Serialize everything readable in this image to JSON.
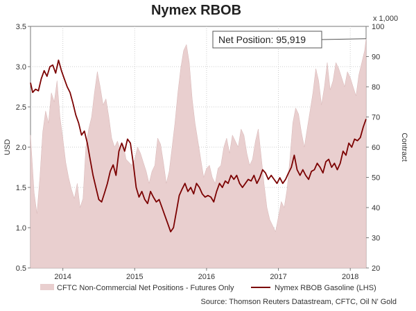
{
  "chart_data": {
    "type": "area",
    "title": "Nymex RBOB",
    "ylabel_left": "USD",
    "ylabel_right": "Contract",
    "right_axis_multiplier": "x 1,000",
    "ylim_left": [
      0.5,
      3.5
    ],
    "ylim_right": [
      20,
      100
    ],
    "xlim": [
      2013.55,
      2018.22
    ],
    "left_ticks": [
      "0.5",
      "1.0",
      "1.5",
      "2.0",
      "2.5",
      "3.0",
      "3.5"
    ],
    "right_ticks": [
      "20",
      "30",
      "40",
      "50",
      "60",
      "70",
      "80",
      "90",
      "100"
    ],
    "x_ticks": [
      {
        "value": 2014,
        "label": "2014"
      },
      {
        "value": 2015,
        "label": "2015"
      },
      {
        "value": 2016,
        "label": "2016"
      },
      {
        "value": 2017,
        "label": "2017"
      },
      {
        "value": 2018,
        "label": "2018"
      }
    ],
    "grid": true,
    "legend_placement": "bottom",
    "annotation": "Net Position: 95,919",
    "annotation_value": 95.919,
    "series": [
      {
        "name": "CFTC Non-Commercial Net Positions - Futures Only",
        "axis": "right",
        "kind": "area",
        "color": "#e9cfcf",
        "points": [
          [
            2013.55,
            64
          ],
          [
            2013.6,
            45
          ],
          [
            2013.64,
            38
          ],
          [
            2013.68,
            50
          ],
          [
            2013.72,
            65
          ],
          [
            2013.76,
            72
          ],
          [
            2013.8,
            68
          ],
          [
            2013.84,
            78
          ],
          [
            2013.88,
            75
          ],
          [
            2013.92,
            82
          ],
          [
            2013.96,
            70
          ],
          [
            2014.0,
            63
          ],
          [
            2014.04,
            55
          ],
          [
            2014.08,
            50
          ],
          [
            2014.12,
            46
          ],
          [
            2014.16,
            43
          ],
          [
            2014.2,
            48
          ],
          [
            2014.24,
            40
          ],
          [
            2014.28,
            43
          ],
          [
            2014.32,
            60
          ],
          [
            2014.36,
            66
          ],
          [
            2014.4,
            70
          ],
          [
            2014.44,
            78
          ],
          [
            2014.48,
            85
          ],
          [
            2014.52,
            80
          ],
          [
            2014.56,
            74
          ],
          [
            2014.6,
            76
          ],
          [
            2014.64,
            70
          ],
          [
            2014.68,
            63
          ],
          [
            2014.72,
            60
          ],
          [
            2014.76,
            62
          ],
          [
            2014.8,
            59
          ],
          [
            2014.84,
            61
          ],
          [
            2014.88,
            56
          ],
          [
            2014.92,
            55
          ],
          [
            2014.96,
            54
          ],
          [
            2015.0,
            56
          ],
          [
            2015.04,
            60
          ],
          [
            2015.08,
            58
          ],
          [
            2015.12,
            55
          ],
          [
            2015.16,
            52
          ],
          [
            2015.2,
            48
          ],
          [
            2015.24,
            52
          ],
          [
            2015.28,
            54
          ],
          [
            2015.32,
            63
          ],
          [
            2015.36,
            61
          ],
          [
            2015.4,
            55
          ],
          [
            2015.44,
            48
          ],
          [
            2015.48,
            52
          ],
          [
            2015.52,
            60
          ],
          [
            2015.56,
            68
          ],
          [
            2015.6,
            78
          ],
          [
            2015.64,
            86
          ],
          [
            2015.68,
            92
          ],
          [
            2015.72,
            94
          ],
          [
            2015.76,
            88
          ],
          [
            2015.8,
            76
          ],
          [
            2015.84,
            68
          ],
          [
            2015.88,
            62
          ],
          [
            2015.92,
            56
          ],
          [
            2015.96,
            50
          ],
          [
            2016.0,
            53
          ],
          [
            2016.04,
            54
          ],
          [
            2016.08,
            50
          ],
          [
            2016.12,
            48
          ],
          [
            2016.16,
            53
          ],
          [
            2016.2,
            54
          ],
          [
            2016.24,
            60
          ],
          [
            2016.28,
            63
          ],
          [
            2016.32,
            58
          ],
          [
            2016.36,
            64
          ],
          [
            2016.4,
            62
          ],
          [
            2016.44,
            60
          ],
          [
            2016.48,
            66
          ],
          [
            2016.52,
            64
          ],
          [
            2016.56,
            58
          ],
          [
            2016.6,
            54
          ],
          [
            2016.64,
            56
          ],
          [
            2016.68,
            62
          ],
          [
            2016.72,
            66
          ],
          [
            2016.76,
            57
          ],
          [
            2016.8,
            48
          ],
          [
            2016.84,
            40
          ],
          [
            2016.88,
            36
          ],
          [
            2016.92,
            34
          ],
          [
            2016.96,
            32
          ],
          [
            2017.0,
            37
          ],
          [
            2017.04,
            42
          ],
          [
            2017.08,
            40
          ],
          [
            2017.12,
            46
          ],
          [
            2017.16,
            56
          ],
          [
            2017.2,
            68
          ],
          [
            2017.24,
            73
          ],
          [
            2017.28,
            71
          ],
          [
            2017.32,
            65
          ],
          [
            2017.36,
            60
          ],
          [
            2017.4,
            66
          ],
          [
            2017.44,
            72
          ],
          [
            2017.48,
            78
          ],
          [
            2017.52,
            86
          ],
          [
            2017.56,
            82
          ],
          [
            2017.6,
            74
          ],
          [
            2017.64,
            80
          ],
          [
            2017.68,
            88
          ],
          [
            2017.72,
            79
          ],
          [
            2017.76,
            82
          ],
          [
            2017.8,
            88
          ],
          [
            2017.84,
            86
          ],
          [
            2017.88,
            83
          ],
          [
            2017.92,
            80
          ],
          [
            2017.96,
            85
          ],
          [
            2018.0,
            83
          ],
          [
            2018.04,
            80
          ],
          [
            2018.08,
            77
          ],
          [
            2018.12,
            84
          ],
          [
            2018.16,
            88
          ],
          [
            2018.2,
            92
          ],
          [
            2018.22,
            95.919
          ]
        ]
      },
      {
        "name": "Nymex RBOB Gasoline (LHS)",
        "axis": "left",
        "kind": "line",
        "color": "#7b0000",
        "points": [
          [
            2013.55,
            2.8
          ],
          [
            2013.58,
            2.68
          ],
          [
            2013.62,
            2.72
          ],
          [
            2013.66,
            2.7
          ],
          [
            2013.7,
            2.85
          ],
          [
            2013.74,
            2.95
          ],
          [
            2013.78,
            2.88
          ],
          [
            2013.82,
            3.0
          ],
          [
            2013.86,
            3.02
          ],
          [
            2013.9,
            2.92
          ],
          [
            2013.94,
            3.08
          ],
          [
            2013.98,
            2.95
          ],
          [
            2014.02,
            2.85
          ],
          [
            2014.06,
            2.75
          ],
          [
            2014.1,
            2.68
          ],
          [
            2014.14,
            2.55
          ],
          [
            2014.18,
            2.4
          ],
          [
            2014.22,
            2.3
          ],
          [
            2014.26,
            2.15
          ],
          [
            2014.3,
            2.2
          ],
          [
            2014.34,
            2.05
          ],
          [
            2014.38,
            1.85
          ],
          [
            2014.42,
            1.65
          ],
          [
            2014.46,
            1.5
          ],
          [
            2014.5,
            1.35
          ],
          [
            2014.54,
            1.32
          ],
          [
            2014.58,
            1.43
          ],
          [
            2014.62,
            1.55
          ],
          [
            2014.66,
            1.7
          ],
          [
            2014.7,
            1.78
          ],
          [
            2014.74,
            1.65
          ],
          [
            2014.78,
            1.95
          ],
          [
            2014.82,
            2.05
          ],
          [
            2014.86,
            1.95
          ],
          [
            2014.9,
            2.1
          ],
          [
            2014.94,
            2.05
          ],
          [
            2014.98,
            1.8
          ],
          [
            2015.02,
            1.5
          ],
          [
            2015.06,
            1.38
          ],
          [
            2015.1,
            1.45
          ],
          [
            2015.14,
            1.35
          ],
          [
            2015.18,
            1.3
          ],
          [
            2015.22,
            1.45
          ],
          [
            2015.26,
            1.38
          ],
          [
            2015.3,
            1.32
          ],
          [
            2015.34,
            1.35
          ],
          [
            2015.38,
            1.25
          ],
          [
            2015.42,
            1.15
          ],
          [
            2015.46,
            1.05
          ],
          [
            2015.5,
            0.95
          ],
          [
            2015.54,
            1.0
          ],
          [
            2015.58,
            1.2
          ],
          [
            2015.62,
            1.4
          ],
          [
            2015.66,
            1.48
          ],
          [
            2015.7,
            1.55
          ],
          [
            2015.74,
            1.45
          ],
          [
            2015.78,
            1.5
          ],
          [
            2015.82,
            1.42
          ],
          [
            2015.86,
            1.55
          ],
          [
            2015.9,
            1.5
          ],
          [
            2015.94,
            1.42
          ],
          [
            2015.98,
            1.38
          ],
          [
            2016.02,
            1.4
          ],
          [
            2016.06,
            1.38
          ],
          [
            2016.1,
            1.32
          ],
          [
            2016.14,
            1.45
          ],
          [
            2016.18,
            1.55
          ],
          [
            2016.22,
            1.5
          ],
          [
            2016.26,
            1.58
          ],
          [
            2016.3,
            1.55
          ],
          [
            2016.34,
            1.65
          ],
          [
            2016.38,
            1.6
          ],
          [
            2016.42,
            1.65
          ],
          [
            2016.46,
            1.55
          ],
          [
            2016.5,
            1.5
          ],
          [
            2016.54,
            1.55
          ],
          [
            2016.58,
            1.6
          ],
          [
            2016.62,
            1.58
          ],
          [
            2016.66,
            1.65
          ],
          [
            2016.7,
            1.55
          ],
          [
            2016.74,
            1.62
          ],
          [
            2016.78,
            1.72
          ],
          [
            2016.82,
            1.68
          ],
          [
            2016.86,
            1.6
          ],
          [
            2016.9,
            1.65
          ],
          [
            2016.94,
            1.6
          ],
          [
            2016.98,
            1.55
          ],
          [
            2017.02,
            1.62
          ],
          [
            2017.06,
            1.55
          ],
          [
            2017.1,
            1.6
          ],
          [
            2017.14,
            1.68
          ],
          [
            2017.18,
            1.75
          ],
          [
            2017.22,
            1.9
          ],
          [
            2017.26,
            1.72
          ],
          [
            2017.3,
            1.65
          ],
          [
            2017.34,
            1.72
          ],
          [
            2017.38,
            1.65
          ],
          [
            2017.42,
            1.6
          ],
          [
            2017.46,
            1.7
          ],
          [
            2017.5,
            1.72
          ],
          [
            2017.54,
            1.8
          ],
          [
            2017.58,
            1.75
          ],
          [
            2017.62,
            1.68
          ],
          [
            2017.66,
            1.82
          ],
          [
            2017.7,
            1.85
          ],
          [
            2017.74,
            1.75
          ],
          [
            2017.78,
            1.8
          ],
          [
            2017.82,
            1.72
          ],
          [
            2017.86,
            1.8
          ],
          [
            2017.9,
            1.95
          ],
          [
            2017.94,
            1.9
          ],
          [
            2017.98,
            2.05
          ],
          [
            2018.02,
            2.0
          ],
          [
            2018.06,
            2.1
          ],
          [
            2018.1,
            2.08
          ],
          [
            2018.14,
            2.12
          ],
          [
            2018.18,
            2.25
          ],
          [
            2018.22,
            2.35
          ]
        ]
      }
    ],
    "source": "Source: Thomson Reuters Datastream, CFTC, Oil N' Gold"
  }
}
